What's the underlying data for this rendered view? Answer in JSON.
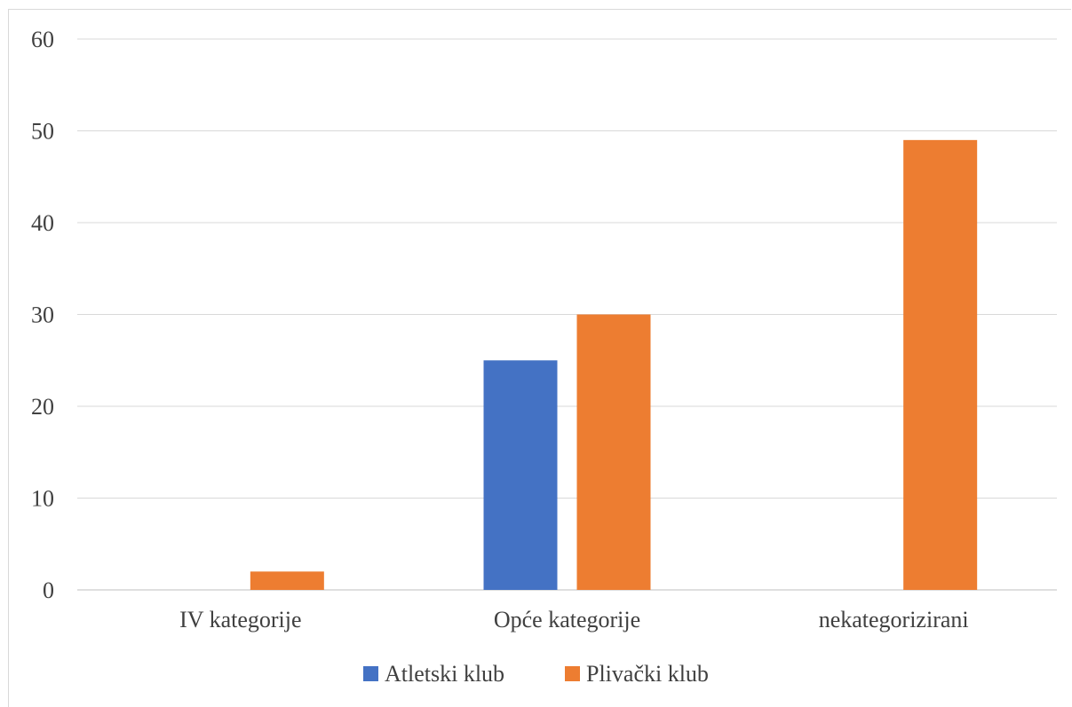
{
  "chart_data": {
    "type": "bar",
    "categories": [
      "IV kategorije",
      "Opće kategorije",
      "nekategorizirani"
    ],
    "series": [
      {
        "name": "Atletski klub",
        "values": [
          0,
          25,
          0
        ],
        "color": "#4472C4"
      },
      {
        "name": "Plivački klub",
        "values": [
          2,
          30,
          49
        ],
        "color": "#ED7D31"
      }
    ],
    "y_ticks": [
      "0",
      "10",
      "20",
      "30",
      "40",
      "50",
      "60"
    ],
    "ylim": [
      0,
      60
    ],
    "grid": true,
    "legend_position": "bottom"
  }
}
